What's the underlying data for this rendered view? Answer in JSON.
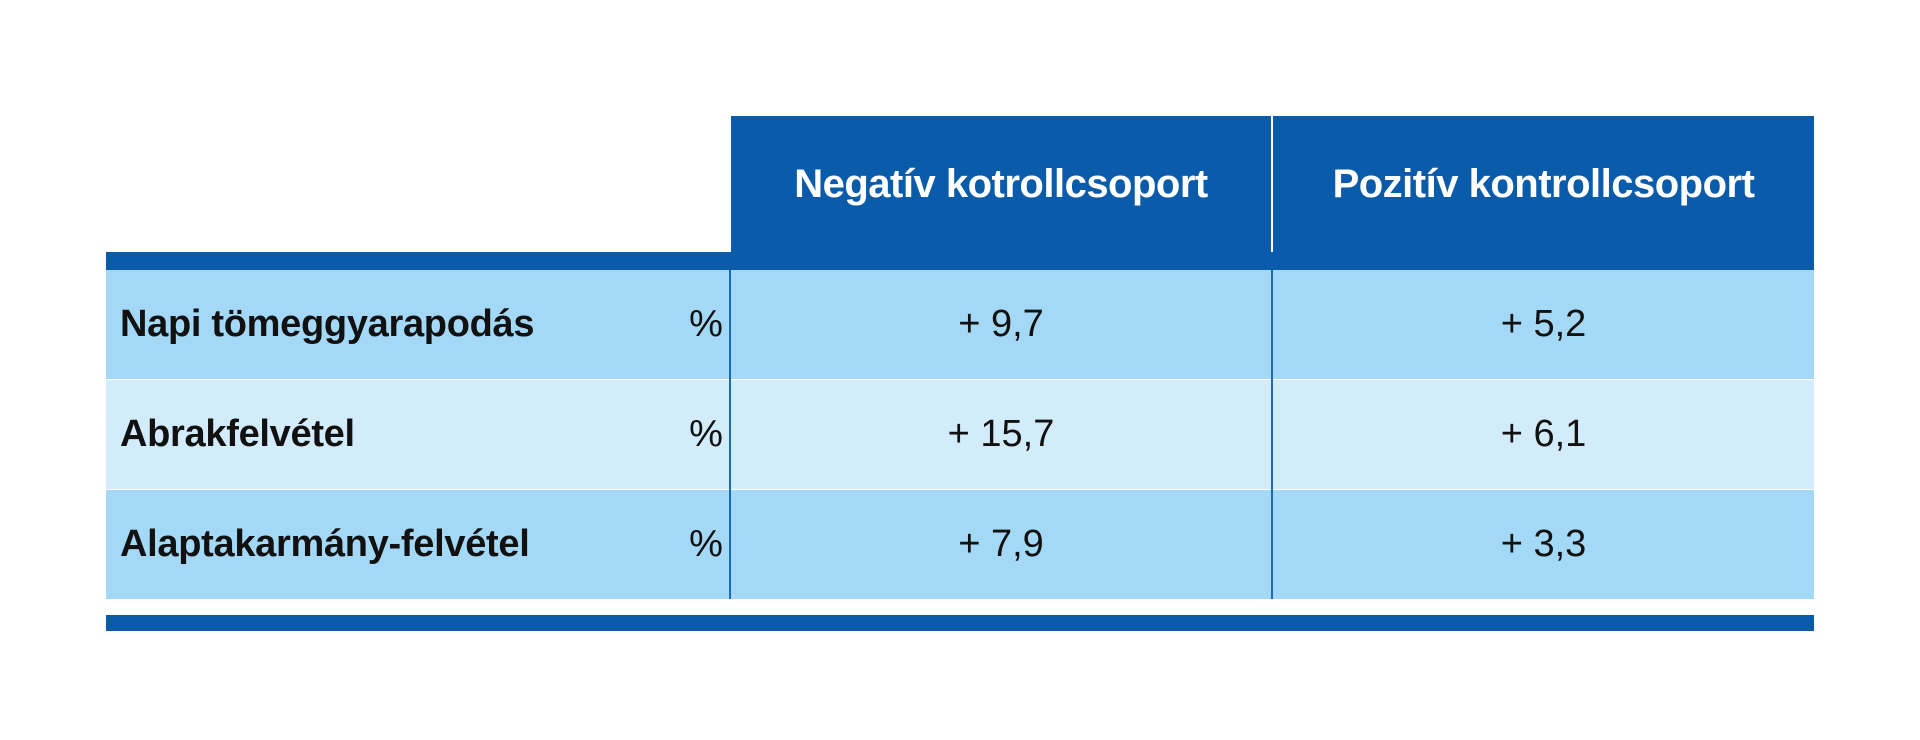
{
  "table": {
    "columns": [
      "Negatív kotrollcsoport",
      "Pozitív kontrollcsoport"
    ],
    "rows": [
      {
        "label": "Napi tömeggyarapodás",
        "unit": "%",
        "negative": "+ 9,7",
        "positive": "+ 5,2"
      },
      {
        "label": "Abrakfelvétel",
        "unit": "%",
        "negative": "+ 15,7",
        "positive": "+ 6,1"
      },
      {
        "label": "Alaptakarmány-felvétel",
        "unit": "%",
        "negative": "+ 7,9",
        "positive": "+ 3,3"
      }
    ]
  },
  "colors": {
    "header_blue": "#0a5cab",
    "row_dark": "#a3d8f6",
    "row_light": "#d3ecfb"
  }
}
